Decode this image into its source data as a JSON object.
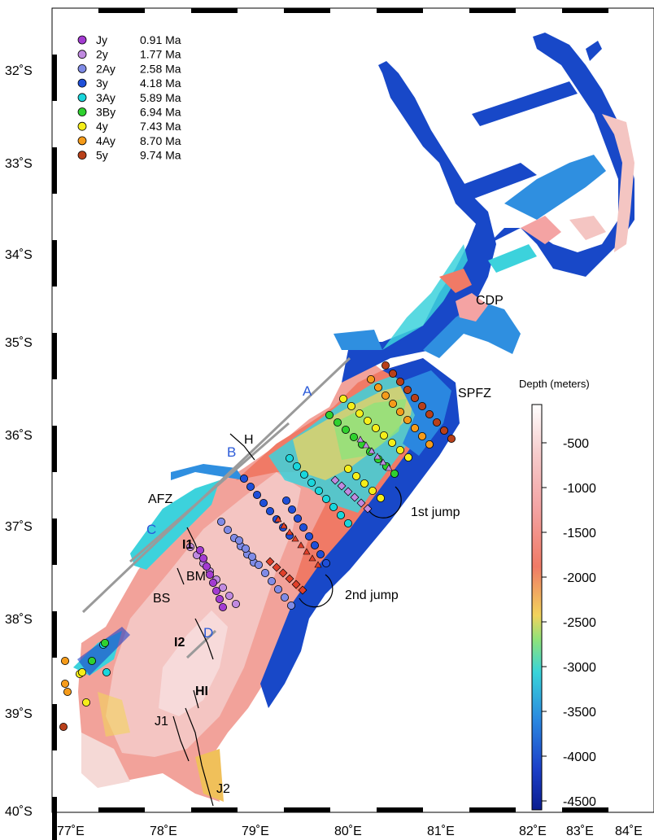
{
  "map": {
    "lat_labels": [
      "32˚S",
      "33˚S",
      "34˚S",
      "35˚S",
      "36˚S",
      "37˚S",
      "38˚S",
      "39˚S",
      "40˚S"
    ],
    "lon_labels": [
      "77˚E",
      "78˚E",
      "79˚E",
      "80˚E",
      "81˚E",
      "82˚E",
      "83˚E",
      "84˚E"
    ],
    "legend": [
      {
        "name": "Jy",
        "age": "0.91 Ma",
        "color": "#a33bd1"
      },
      {
        "name": "2y",
        "age": "1.77 Ma",
        "color": "#c08ae0"
      },
      {
        "name": "2Ay",
        "age": "2.58 Ma",
        "color": "#7f8be6"
      },
      {
        "name": "3y",
        "age": "4.18 Ma",
        "color": "#1f4fd8"
      },
      {
        "name": "3Ay",
        "age": "5.89 Ma",
        "color": "#19d6dc"
      },
      {
        "name": "3By",
        "age": "6.94 Ma",
        "color": "#2fd12f"
      },
      {
        "name": "4y",
        "age": "7.43 Ma",
        "color": "#f5ee1a"
      },
      {
        "name": "4Ay",
        "age": "8.70 Ma",
        "color": "#f59b1a"
      },
      {
        "name": "5y",
        "age": "9.74 Ma",
        "color": "#b8401a"
      }
    ],
    "labels": {
      "A": "A",
      "B": "B",
      "C": "C",
      "D": "D",
      "H": "H",
      "AFZ": "AFZ",
      "CDP": "CDP",
      "SPFZ": "SPFZ",
      "I1": "I1",
      "BM": "BM",
      "BS": "BS",
      "I2": "I2",
      "HI": "HI",
      "J1": "J1",
      "J2": "J2",
      "jump1": "1st jump",
      "jump2": "2nd jump"
    },
    "colorbar": {
      "title": "Depth (meters)",
      "ticks": [
        "-500",
        "-1000",
        "-1500",
        "-2000",
        "-2500",
        "-3000",
        "-3500",
        "-4000",
        "-4500"
      ],
      "colors": [
        "#ffffff",
        "#f6c9c9",
        "#f3a0a0",
        "#f07a66",
        "#f2d35c",
        "#8fe27a",
        "#39d4d9",
        "#2a87e0",
        "#1c3fc8",
        "#0a1c8f"
      ]
    },
    "colors": {
      "deep": "#1848c8",
      "mid": "#2f8fe0",
      "cyan": "#3cd2dc",
      "pink": "#f4a3a3",
      "salmon": "#ee8a75",
      "light": "#f8dede",
      "yellow": "#f2d35c"
    }
  }
}
